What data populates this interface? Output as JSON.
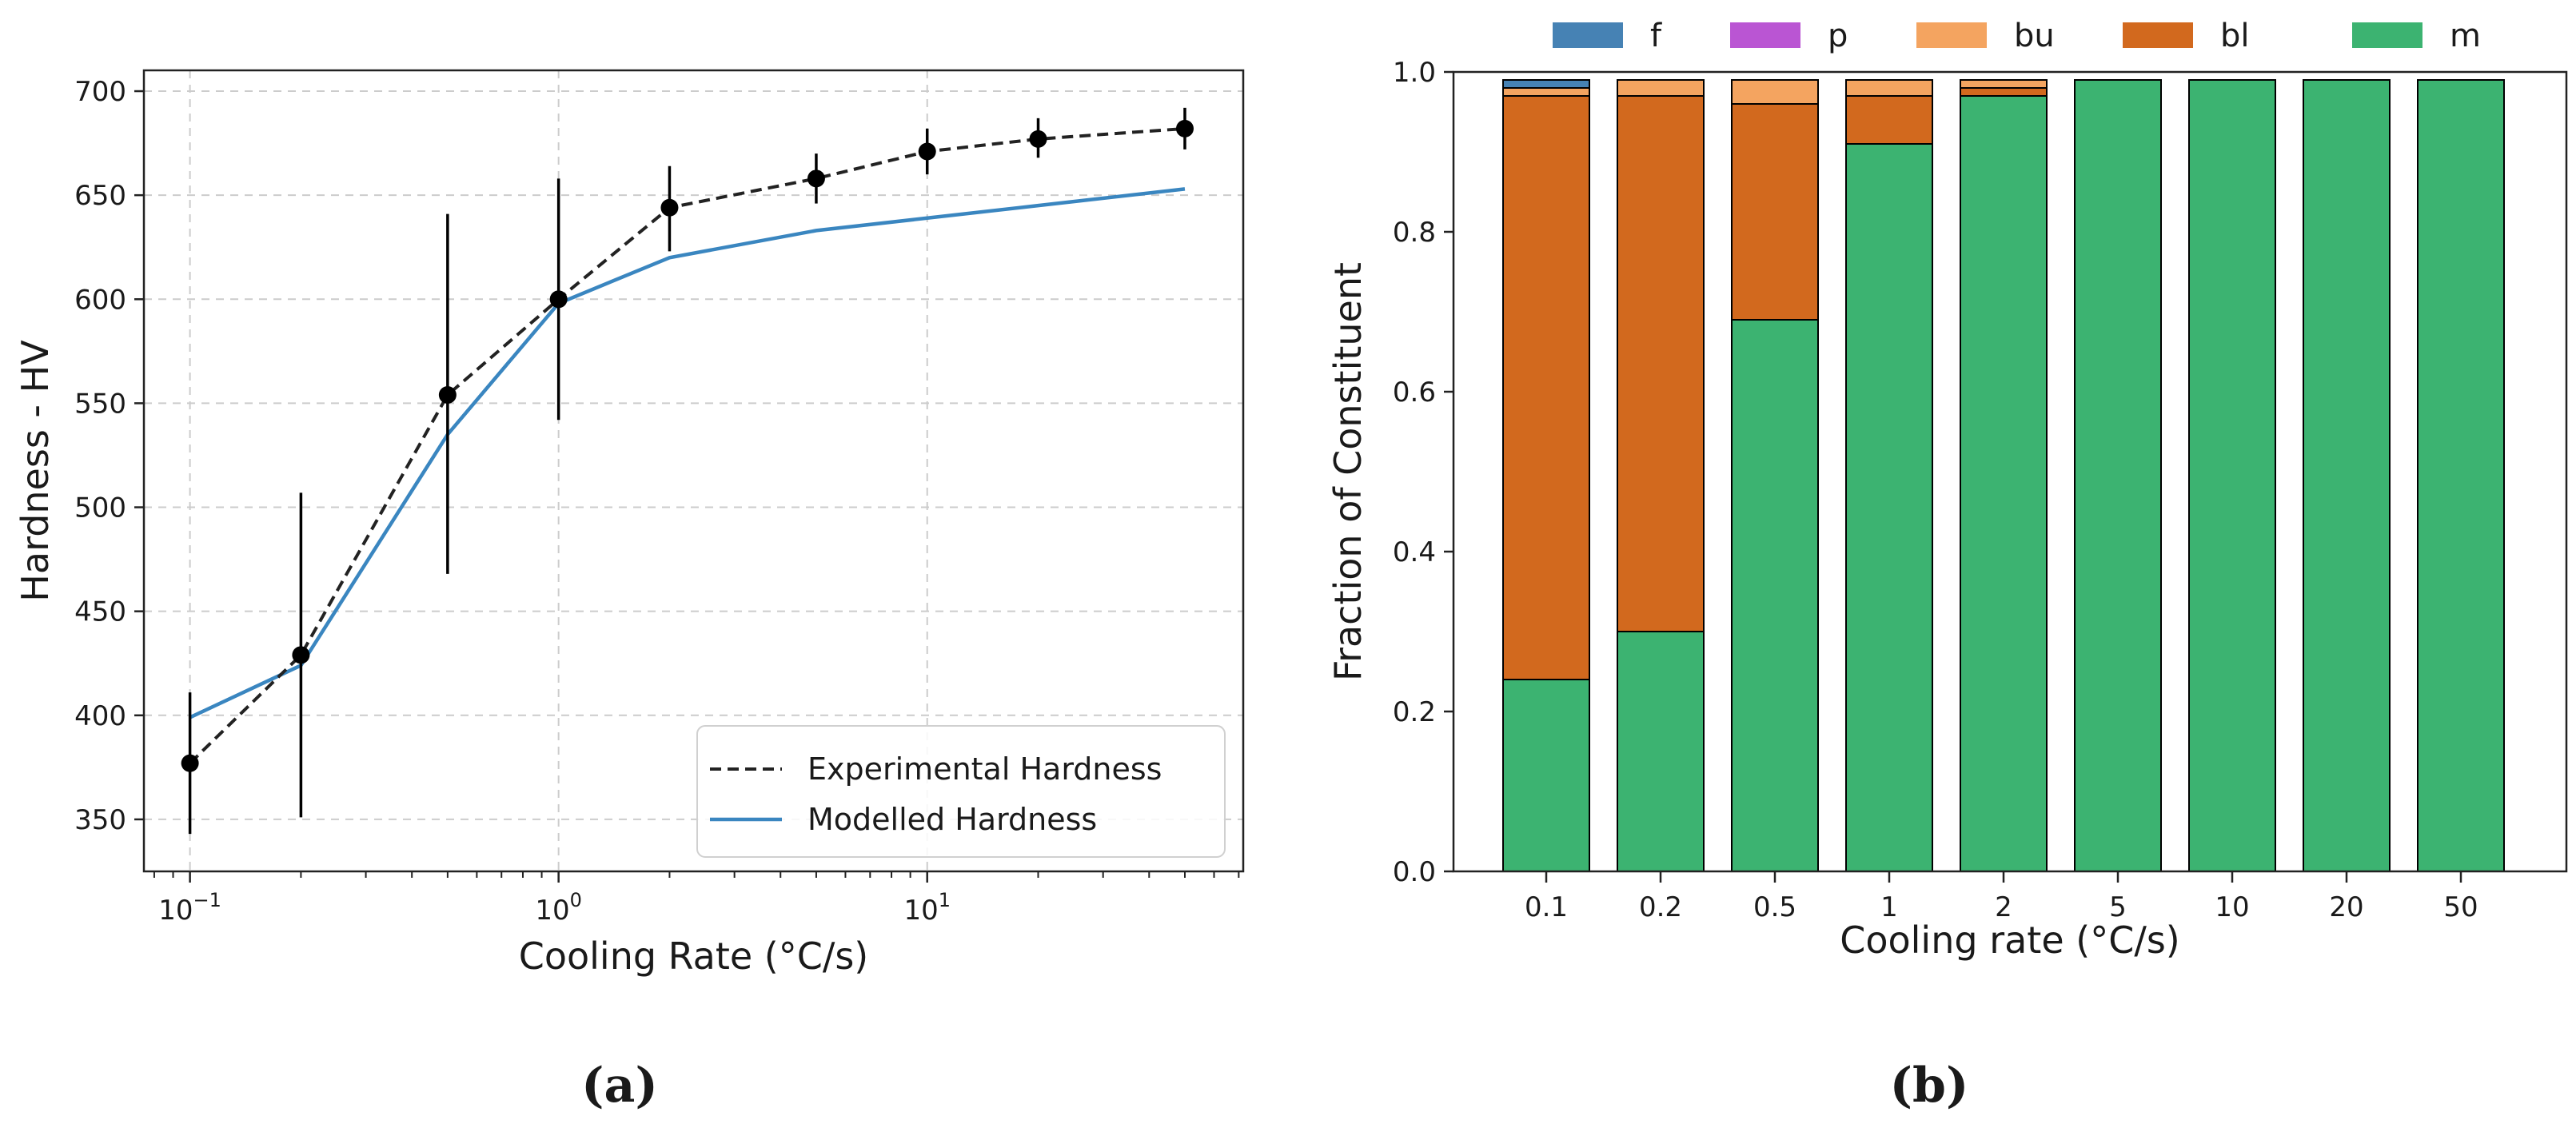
{
  "chart_data": [
    {
      "type": "line",
      "panel_label": "(a)",
      "xscale": "log",
      "xlabel": "Cooling Rate (°C/s)",
      "ylabel": "Hardness - HV",
      "xlim": [
        0.075,
        72
      ],
      "ylim": [
        325,
        710
      ],
      "x_ticks": [
        {
          "value": 0.1,
          "base": "10",
          "exp": "−1"
        },
        {
          "value": 1,
          "base": "10",
          "exp": "0"
        },
        {
          "value": 10,
          "base": "10",
          "exp": "1"
        }
      ],
      "y_ticks": [
        350,
        400,
        450,
        500,
        550,
        600,
        650,
        700
      ],
      "grid": true,
      "legend_position": "lower-right",
      "series": [
        {
          "name": "Experimental Hardness",
          "style": "dashed",
          "color": "#222222",
          "markers": true,
          "x": [
            0.1,
            0.2,
            0.5,
            1,
            2,
            5,
            10,
            20,
            50
          ],
          "y": [
            377,
            429,
            554,
            600,
            644,
            658,
            671,
            677,
            682
          ],
          "err_low": [
            343,
            351,
            468,
            542,
            623,
            646,
            660,
            668,
            672
          ],
          "err_high": [
            411,
            507,
            641,
            658,
            664,
            670,
            682,
            687,
            692
          ]
        },
        {
          "name": "Modelled Hardness",
          "style": "solid",
          "color": "#3a86c0",
          "markers": false,
          "x": [
            0.1,
            0.2,
            0.5,
            1,
            2,
            5,
            10,
            20,
            50
          ],
          "y": [
            399,
            424,
            535,
            598,
            620,
            633,
            639,
            645,
            653
          ]
        }
      ]
    },
    {
      "type": "bar",
      "stacked": true,
      "panel_label": "(b)",
      "xlabel": "Cooling rate (°C/s)",
      "ylabel": "Fraction of Constituent",
      "categories": [
        "0.1",
        "0.2",
        "0.5",
        "1",
        "2",
        "5",
        "10",
        "20",
        "50"
      ],
      "ylim": [
        0,
        1.0
      ],
      "y_ticks": [
        "0.0",
        "0.2",
        "0.4",
        "0.6",
        "0.8",
        "1.0"
      ],
      "legend_position": "top",
      "series": [
        {
          "name": "m",
          "color": "#3cb371",
          "values": [
            0.24,
            0.3,
            0.69,
            0.91,
            0.97,
            0.99,
            0.99,
            0.99,
            0.99
          ]
        },
        {
          "name": "bl",
          "color": "#d2691e",
          "values": [
            0.73,
            0.67,
            0.27,
            0.06,
            0.01,
            0,
            0,
            0,
            0
          ]
        },
        {
          "name": "bu",
          "color": "#f4a460",
          "values": [
            0.01,
            0.02,
            0.03,
            0.02,
            0.01,
            0,
            0,
            0,
            0
          ]
        },
        {
          "name": "p",
          "color": "#ba55d3",
          "values": [
            0,
            0,
            0,
            0,
            0,
            0,
            0,
            0,
            0
          ]
        },
        {
          "name": "f",
          "color": "#4682b4",
          "values": [
            0.01,
            0,
            0,
            0,
            0,
            0,
            0,
            0,
            0
          ]
        }
      ],
      "legend_order": [
        "f",
        "p",
        "bu",
        "bl",
        "m"
      ]
    }
  ]
}
